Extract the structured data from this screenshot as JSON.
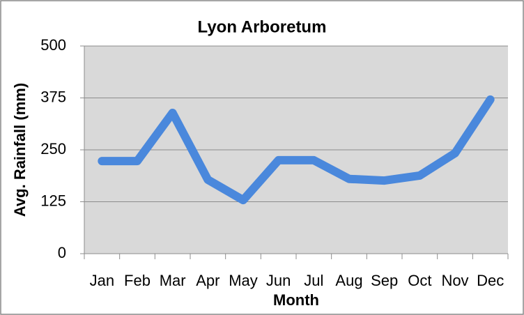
{
  "chart_data": {
    "type": "line",
    "title": "Lyon Arboretum",
    "x_label": "Month",
    "y_label": "Avg. Rainfall  (mm)",
    "categories": [
      "Jan",
      "Feb",
      "Mar",
      "Apr",
      "May",
      "Jun",
      "Jul",
      "Aug",
      "Sep",
      "Oct",
      "Nov",
      "Dec"
    ],
    "series": [
      {
        "name": "Avg. Rainfall",
        "color": "#4a88dc",
        "values": [
          223,
          223,
          339,
          178,
          129,
          225,
          225,
          180,
          176,
          188,
          242,
          371
        ]
      }
    ],
    "ylim": [
      0,
      500
    ],
    "yticks": [
      0,
      125,
      250,
      375,
      500
    ],
    "grid": true
  }
}
